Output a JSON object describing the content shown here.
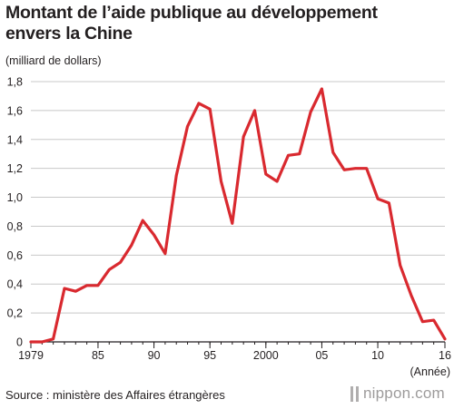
{
  "title_line1": "Montant de l’aide publique au développement",
  "title_line2": "envers la Chine",
  "unit_label": "(milliard de dollars)",
  "source": "Source : ministère des Affaires étrangères",
  "logo_text": "nippon.com",
  "logo_icon": "nippon-bars-icon",
  "colors": {
    "line": "#d9292f",
    "grid": "#c8c8c8",
    "axis": "#231f20"
  },
  "chart_data": {
    "type": "line",
    "title": "Montant de l’aide publique au développement envers la Chine",
    "ylabel": "(milliard de dollars)",
    "xlabel": "(Année)",
    "ylim": [
      0,
      1.8
    ],
    "xlim": [
      1979,
      2016
    ],
    "yticks": [
      "0",
      "0,2",
      "0,4",
      "0,6",
      "0,8",
      "1,0",
      "1,2",
      "1,4",
      "1,6",
      "1,8"
    ],
    "xticks": [
      {
        "year": 1979,
        "label": "1979"
      },
      {
        "year": 1985,
        "label": "85"
      },
      {
        "year": 1990,
        "label": "90"
      },
      {
        "year": 1995,
        "label": "95"
      },
      {
        "year": 2000,
        "label": "2000"
      },
      {
        "year": 2005,
        "label": "05"
      },
      {
        "year": 2010,
        "label": "10"
      },
      {
        "year": 2016,
        "label": "16"
      }
    ],
    "grid": true,
    "x": [
      1979,
      1980,
      1981,
      1982,
      1983,
      1984,
      1985,
      1986,
      1987,
      1988,
      1989,
      1990,
      1991,
      1992,
      1993,
      1994,
      1995,
      1996,
      1997,
      1998,
      1999,
      2000,
      2001,
      2002,
      2003,
      2004,
      2005,
      2006,
      2007,
      2008,
      2009,
      2010,
      2011,
      2012,
      2013,
      2014,
      2015,
      2016
    ],
    "series": [
      {
        "values": [
          0.0,
          0.0,
          0.02,
          0.37,
          0.35,
          0.39,
          0.39,
          0.5,
          0.55,
          0.67,
          0.84,
          0.74,
          0.61,
          1.15,
          1.49,
          1.65,
          1.61,
          1.11,
          0.82,
          1.42,
          1.6,
          1.16,
          1.11,
          1.29,
          1.3,
          1.59,
          1.75,
          1.31,
          1.19,
          1.2,
          1.2,
          0.99,
          0.96,
          0.53,
          0.32,
          0.14,
          0.15,
          0.02
        ]
      }
    ]
  }
}
